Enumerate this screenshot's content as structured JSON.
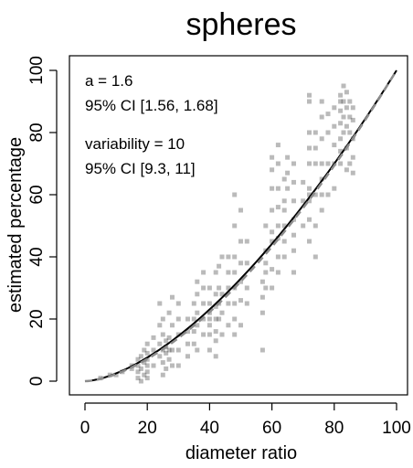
{
  "chart_data": {
    "type": "scatter",
    "title": "spheres",
    "xlabel": "diameter ratio",
    "ylabel": "estimated percentage",
    "xlim": [
      0,
      100
    ],
    "ylim": [
      0,
      100
    ],
    "xticks": [
      0,
      20,
      40,
      60,
      80,
      100
    ],
    "yticks": [
      0,
      20,
      40,
      60,
      80,
      100
    ],
    "grid": false,
    "annotations": [
      "a = 1.6",
      "95% CI [1.56, 1.68]",
      "variability = 10",
      "95% CI [9.3, 11]"
    ],
    "fit": {
      "a": 1.6,
      "line_color": "#000000",
      "dashed_color": "#8c8c8c"
    },
    "point_color": "#3a3a3a",
    "points": [
      [
        5,
        1
      ],
      [
        8,
        2
      ],
      [
        10,
        2
      ],
      [
        12,
        3
      ],
      [
        15,
        4
      ],
      [
        15,
        5
      ],
      [
        17,
        1
      ],
      [
        17,
        3
      ],
      [
        17,
        5
      ],
      [
        17,
        7
      ],
      [
        18,
        0
      ],
      [
        18,
        4
      ],
      [
        18,
        8
      ],
      [
        19,
        2
      ],
      [
        19,
        6
      ],
      [
        19,
        10
      ],
      [
        20,
        1
      ],
      [
        20,
        3
      ],
      [
        20,
        5
      ],
      [
        20,
        7
      ],
      [
        20,
        9
      ],
      [
        20,
        12
      ],
      [
        22,
        5
      ],
      [
        22,
        10
      ],
      [
        22,
        14
      ],
      [
        24,
        8
      ],
      [
        24,
        12
      ],
      [
        24,
        18
      ],
      [
        24,
        25
      ],
      [
        25,
        2
      ],
      [
        25,
        6
      ],
      [
        25,
        10
      ],
      [
        25,
        15
      ],
      [
        25,
        20
      ],
      [
        26,
        4
      ],
      [
        26,
        9
      ],
      [
        26,
        11
      ],
      [
        26,
        13
      ],
      [
        27,
        7
      ],
      [
        27,
        10
      ],
      [
        27,
        14
      ],
      [
        27,
        22
      ],
      [
        28,
        5
      ],
      [
        28,
        10
      ],
      [
        28,
        18
      ],
      [
        28,
        27
      ],
      [
        30,
        5
      ],
      [
        30,
        10
      ],
      [
        30,
        15
      ],
      [
        30,
        20
      ],
      [
        30,
        25
      ],
      [
        33,
        8
      ],
      [
        33,
        12
      ],
      [
        33,
        16
      ],
      [
        33,
        20
      ],
      [
        35,
        12
      ],
      [
        35,
        16
      ],
      [
        35,
        20
      ],
      [
        35,
        25
      ],
      [
        36,
        10
      ],
      [
        36,
        18
      ],
      [
        36,
        22
      ],
      [
        36,
        28
      ],
      [
        36,
        32
      ],
      [
        38,
        15
      ],
      [
        38,
        20
      ],
      [
        38,
        25
      ],
      [
        38,
        30
      ],
      [
        38,
        35
      ],
      [
        40,
        10
      ],
      [
        40,
        15
      ],
      [
        40,
        18
      ],
      [
        40,
        20
      ],
      [
        40,
        22
      ],
      [
        40,
        25
      ],
      [
        40,
        30
      ],
      [
        42,
        8
      ],
      [
        42,
        13
      ],
      [
        42,
        16
      ],
      [
        42,
        20
      ],
      [
        42,
        24
      ],
      [
        42,
        28
      ],
      [
        42,
        35
      ],
      [
        43,
        20
      ],
      [
        43,
        25
      ],
      [
        43,
        30
      ],
      [
        43,
        37
      ],
      [
        44,
        15
      ],
      [
        44,
        22
      ],
      [
        44,
        28
      ],
      [
        44,
        40
      ],
      [
        46,
        18
      ],
      [
        46,
        25
      ],
      [
        46,
        30
      ],
      [
        46,
        35
      ],
      [
        46,
        40
      ],
      [
        48,
        15
      ],
      [
        48,
        20
      ],
      [
        48,
        25
      ],
      [
        48,
        30
      ],
      [
        48,
        35
      ],
      [
        48,
        40
      ],
      [
        48,
        50
      ],
      [
        48,
        60
      ],
      [
        50,
        18
      ],
      [
        50,
        26
      ],
      [
        50,
        32
      ],
      [
        50,
        38
      ],
      [
        50,
        45
      ],
      [
        50,
        55
      ],
      [
        52,
        25
      ],
      [
        52,
        30
      ],
      [
        52,
        38
      ],
      [
        52,
        45
      ],
      [
        57,
        10
      ],
      [
        57,
        22
      ],
      [
        57,
        27
      ],
      [
        57,
        32
      ],
      [
        58,
        30
      ],
      [
        58,
        35
      ],
      [
        58,
        38
      ],
      [
        58,
        42
      ],
      [
        58,
        50
      ],
      [
        60,
        30
      ],
      [
        60,
        36
      ],
      [
        60,
        45
      ],
      [
        60,
        48
      ],
      [
        60,
        55
      ],
      [
        60,
        62
      ],
      [
        60,
        68
      ],
      [
        60,
        72
      ],
      [
        62,
        35
      ],
      [
        62,
        40
      ],
      [
        62,
        46
      ],
      [
        62,
        50
      ],
      [
        62,
        56
      ],
      [
        62,
        62
      ],
      [
        62,
        70
      ],
      [
        62,
        76
      ],
      [
        64,
        40
      ],
      [
        64,
        45
      ],
      [
        64,
        50
      ],
      [
        64,
        55
      ],
      [
        64,
        58
      ],
      [
        64,
        65
      ],
      [
        65,
        62
      ],
      [
        65,
        67
      ],
      [
        65,
        72
      ],
      [
        67,
        35
      ],
      [
        67,
        42
      ],
      [
        67,
        47
      ],
      [
        67,
        52
      ],
      [
        67,
        58
      ],
      [
        67,
        64
      ],
      [
        67,
        70
      ],
      [
        70,
        50
      ],
      [
        70,
        58
      ],
      [
        70,
        64
      ],
      [
        72,
        45
      ],
      [
        72,
        52
      ],
      [
        72,
        58
      ],
      [
        72,
        60
      ],
      [
        72,
        62
      ],
      [
        72,
        70
      ],
      [
        72,
        75
      ],
      [
        72,
        80
      ],
      [
        72,
        90
      ],
      [
        72,
        92
      ],
      [
        74,
        40
      ],
      [
        74,
        50
      ],
      [
        74,
        60
      ],
      [
        74,
        70
      ],
      [
        74,
        75
      ],
      [
        74,
        80
      ],
      [
        76,
        55
      ],
      [
        76,
        60
      ],
      [
        76,
        65
      ],
      [
        76,
        70
      ],
      [
        76,
        78
      ],
      [
        76,
        85
      ],
      [
        76,
        90
      ],
      [
        78,
        60
      ],
      [
        78,
        70
      ],
      [
        78,
        80
      ],
      [
        78,
        86
      ],
      [
        80,
        62
      ],
      [
        80,
        70
      ],
      [
        80,
        76
      ],
      [
        80,
        82
      ],
      [
        80,
        88
      ],
      [
        82,
        70
      ],
      [
        82,
        74
      ],
      [
        82,
        78
      ],
      [
        82,
        83
      ],
      [
        82,
        87
      ],
      [
        82,
        90
      ],
      [
        82,
        92
      ],
      [
        83,
        80
      ],
      [
        83,
        85
      ],
      [
        83,
        90
      ],
      [
        83,
        95
      ],
      [
        84,
        68
      ],
      [
        84,
        75
      ],
      [
        84,
        82
      ],
      [
        84,
        88
      ],
      [
        84,
        93
      ],
      [
        85,
        70
      ],
      [
        85,
        80
      ],
      [
        85,
        85
      ],
      [
        85,
        90
      ],
      [
        86,
        67
      ],
      [
        86,
        72
      ],
      [
        86,
        78
      ],
      [
        86,
        84
      ],
      [
        86,
        88
      ]
    ]
  }
}
